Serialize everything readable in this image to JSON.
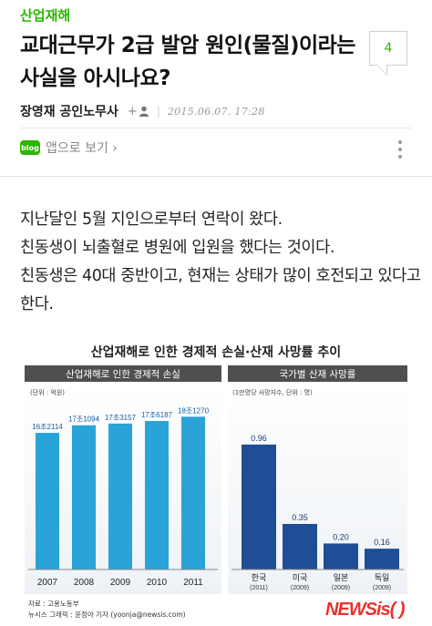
{
  "category": "산업재해",
  "title": "교대근무가 2급 발암 원인(물질)이라는 사실을 아시나요?",
  "comment_count": "4",
  "author": {
    "name": "장영재 공인노무사",
    "add_label": "+",
    "date": "2015.06.07. 17:28"
  },
  "app_link": {
    "icon_text": "blog",
    "label": "앱으로 보기 ›"
  },
  "body": {
    "paragraphs": [
      "지난달인 5월 지인으로부터 연락이 왔다.",
      "친동생이 뇌출혈로 병원에 입원을 했다는 것이다.",
      "친동생은 40대 중반이고, 현재는 상태가 많이 호전되고 있다고 한다."
    ]
  },
  "infographic": {
    "title": "산업재해로 인한 경제적 손실·산재 사망률 추이",
    "source_line1": "자료 : 고용노동부",
    "source_line2": "뉴시스 그래픽 : 윤정아 기자 (yoonja@newsis.com)",
    "logo_text": "NEWSis",
    "logo_paren": "( )"
  },
  "colors": {
    "accent": "#2db400",
    "bar_blue": "#29a3d8",
    "bar_dark": "#1f4e96",
    "header_gray": "#4f4f4f"
  },
  "chart_data": [
    {
      "type": "bar",
      "title": "산업재해로 인한 경제적 손실",
      "unit": "(단위 : 억원)",
      "categories": [
        "2007",
        "2008",
        "2009",
        "2010",
        "2011"
      ],
      "values": [
        162114,
        171094,
        173157,
        176187,
        181270
      ],
      "value_labels": [
        "16조2114",
        "17조1094",
        "17조3157",
        "17조6187",
        "18조1270"
      ],
      "ylim": [
        0,
        200000
      ]
    },
    {
      "type": "bar",
      "title": "국가별 산재 사망률",
      "unit": "(1만명당 사망자수, 단위 : 명)",
      "categories": [
        "한국",
        "미국",
        "일본",
        "독일"
      ],
      "category_years": [
        "(2011)",
        "(2009)",
        "(2009)",
        "(2009)"
      ],
      "values": [
        0.96,
        0.35,
        0.2,
        0.16
      ],
      "value_labels": [
        "0.96",
        "0.35",
        "0.20",
        "0.16"
      ],
      "ylim": [
        0,
        1.05
      ]
    }
  ]
}
